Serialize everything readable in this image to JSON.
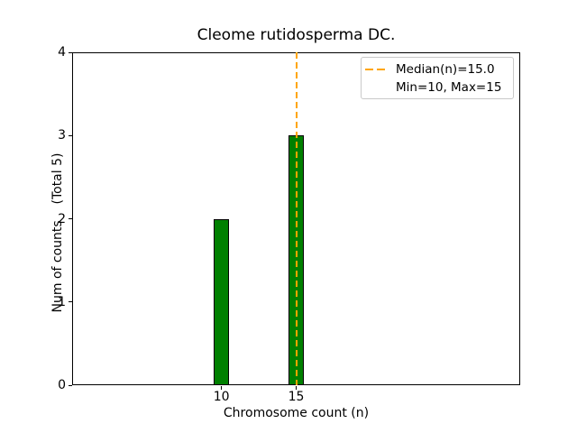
{
  "figure": {
    "background_color": "#ffffff",
    "text_color": "#000000"
  },
  "chart_data": {
    "type": "bar",
    "title": "Cleome rutidosperma DC.",
    "xlabel": "Chromosome count (n)",
    "ylabel": "Num of counts    (Total 5)",
    "x": [
      10,
      15
    ],
    "values": [
      2,
      3
    ],
    "bar_width": 1,
    "xlim": [
      0,
      30
    ],
    "ylim": [
      0,
      4
    ],
    "xticks": [
      10,
      15
    ],
    "yticks": [
      0,
      1,
      2,
      3,
      4
    ],
    "grid": false,
    "bar_color": "#008000",
    "bar_edge_color": "#000000",
    "median_line": {
      "x": 15.0,
      "color": "#FFA500",
      "style": "dashed"
    },
    "legend": {
      "position": "upper right",
      "entries": [
        {
          "sample": "orange-dashed-line",
          "label": "Median(n)=15.0"
        },
        {
          "sample": "none",
          "label": "Min=10, Max=15"
        }
      ]
    }
  }
}
